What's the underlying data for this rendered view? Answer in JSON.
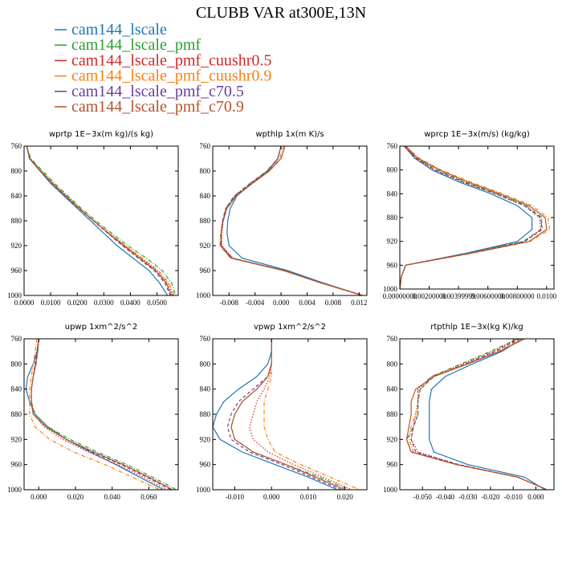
{
  "chart_data": {
    "type": "line",
    "title": "CLUBB VAR at300E,13N",
    "ylim": [
      760,
      1000
    ],
    "series_legend": [
      {
        "name": "cam144_lscale",
        "color": "#1f77b4",
        "dash": "solid"
      },
      {
        "name": "cam144_lscale_pmf",
        "color": "#2ca02c",
        "dash": "dashdot"
      },
      {
        "name": "cam144_lscale_pmf_cuushr0.5",
        "color": "#d62728",
        "dash": "dot"
      },
      {
        "name": "cam144_lscale_pmf_cuushr0.9",
        "color": "#ff7f0e",
        "dash": "dashdot"
      },
      {
        "name": "cam144_lscale_pmf_c70.5",
        "color": "#6a3d9a",
        "dash": "dash"
      },
      {
        "name": "cam144_lscale_pmf_c70.9",
        "color": "#b5532a",
        "dash": "solid"
      }
    ],
    "panels": [
      {
        "title": "wprtp  1E−3x(m kg)/(s kg)",
        "xlim": [
          0,
          0.058
        ],
        "xticks": [
          0,
          0.01,
          0.02,
          0.03,
          0.04,
          0.05
        ],
        "xtick_labels": [
          "0.0000",
          "0.0100",
          "0.0200",
          "0.0300",
          "0.0400",
          "0.0500"
        ],
        "yticks": [
          760,
          800,
          840,
          880,
          920,
          960,
          1000
        ],
        "y": [
          760,
          780,
          800,
          820,
          840,
          860,
          880,
          900,
          920,
          940,
          960,
          980,
          1000
        ],
        "series": [
          {
            "name": "cam144_lscale",
            "values": [
              0.001,
              0.002,
              0.006,
              0.01,
              0.015,
              0.02,
              0.025,
              0.03,
              0.035,
              0.041,
              0.047,
              0.051,
              0.054
            ]
          },
          {
            "name": "cam144_lscale_pmf",
            "values": [
              0.001,
              0.0025,
              0.007,
              0.0115,
              0.0165,
              0.0215,
              0.027,
              0.033,
              0.039,
              0.046,
              0.052,
              0.0555,
              0.057
            ]
          },
          {
            "name": "cam144_lscale_pmf_cuushr0.5",
            "values": [
              0.001,
              0.0023,
              0.0065,
              0.011,
              0.016,
              0.021,
              0.026,
              0.032,
              0.038,
              0.044,
              0.05,
              0.054,
              0.056
            ]
          },
          {
            "name": "cam144_lscale_pmf_cuushr0.9",
            "values": [
              0.001,
              0.0022,
              0.0063,
              0.0108,
              0.0158,
              0.0208,
              0.0262,
              0.032,
              0.038,
              0.0445,
              0.0505,
              0.0545,
              0.0565
            ]
          },
          {
            "name": "cam144_lscale_pmf_c70.5",
            "values": [
              0.001,
              0.0021,
              0.006,
              0.0105,
              0.0155,
              0.0205,
              0.026,
              0.0315,
              0.037,
              0.043,
              0.049,
              0.053,
              0.055
            ]
          },
          {
            "name": "cam144_lscale_pmf_c70.9",
            "values": [
              0.001,
              0.0022,
              0.0062,
              0.0107,
              0.0157,
              0.0207,
              0.0262,
              0.0318,
              0.0375,
              0.0435,
              0.0495,
              0.0535,
              0.0555
            ]
          }
        ]
      },
      {
        "title": "wpthlp  1x(m K)/s",
        "xlim": [
          -0.0105,
          0.0132
        ],
        "xticks": [
          -0.008,
          -0.004,
          0,
          0.004,
          0.008,
          0.012
        ],
        "xtick_labels": [
          "-0.008",
          "-0.004",
          "0.000",
          "0.004",
          "0.008",
          "0.012"
        ],
        "yticks": [
          760,
          800,
          840,
          880,
          920,
          960,
          1000
        ],
        "y": [
          760,
          780,
          800,
          820,
          840,
          860,
          880,
          900,
          920,
          940,
          960,
          980,
          1000
        ],
        "series": [
          {
            "name": "cam144_lscale",
            "values": [
              0.0,
              -0.0005,
              -0.002,
              -0.0045,
              -0.0068,
              -0.0078,
              -0.0082,
              -0.0083,
              -0.008,
              -0.006,
              0.001,
              0.0065,
              0.0125
            ]
          },
          {
            "name": "cam144_lscale_pmf",
            "values": [
              0.0,
              -0.0005,
              -0.0022,
              -0.0048,
              -0.0072,
              -0.0085,
              -0.009,
              -0.0092,
              -0.0092,
              -0.0075,
              0.0005,
              0.0062,
              0.0125
            ]
          },
          {
            "name": "cam144_lscale_pmf_cuushr0.5",
            "values": [
              0.0,
              -0.0005,
              -0.0021,
              -0.0047,
              -0.0071,
              -0.0084,
              -0.0089,
              -0.0091,
              -0.0091,
              -0.0074,
              0.0005,
              0.0062,
              0.0125
            ]
          },
          {
            "name": "cam144_lscale_pmf_cuushr0.9",
            "values": [
              0.0004,
              -0.0002,
              -0.0019,
              -0.0045,
              -0.007,
              -0.0084,
              -0.009,
              -0.0093,
              -0.0094,
              -0.0078,
              0.0003,
              0.0061,
              0.0126
            ]
          },
          {
            "name": "cam144_lscale_pmf_c70.5",
            "values": [
              0.0,
              -0.0005,
              -0.0021,
              -0.0047,
              -0.0071,
              -0.0085,
              -0.009,
              -0.0092,
              -0.0092,
              -0.0075,
              0.0005,
              0.0062,
              0.0125
            ]
          },
          {
            "name": "cam144_lscale_pmf_c70.9",
            "values": [
              0.0006,
              0.0,
              -0.0018,
              -0.0044,
              -0.0069,
              -0.0083,
              -0.0089,
              -0.0092,
              -0.0093,
              -0.0077,
              0.0004,
              0.0062,
              0.0126
            ]
          }
        ]
      },
      {
        "title": "wprcp  1E−3x(m/s) (kg/kg)",
        "xlim": [
          0,
          0.0105
        ],
        "xticks": [
          0,
          0.002,
          0.004,
          0.006,
          0.008,
          0.01
        ],
        "xtick_labels": [
          "0.00000000",
          "0.00200000",
          "0.00399999",
          "0.00600000",
          "0.00800000",
          "0.0100"
        ],
        "yticks": [
          760,
          800,
          840,
          880,
          920,
          960,
          1000
        ],
        "y": [
          760,
          780,
          800,
          820,
          840,
          860,
          880,
          900,
          920,
          940,
          960,
          980,
          1000
        ],
        "series": [
          {
            "name": "cam144_lscale",
            "values": [
              0.0003,
              0.001,
              0.0022,
              0.004,
              0.0062,
              0.008,
              0.009,
              0.009,
              0.008,
              0.0045,
              0.0004,
              0.0001,
              0.0
            ]
          },
          {
            "name": "cam144_lscale_pmf",
            "values": [
              0.0003,
              0.0011,
              0.0025,
              0.0044,
              0.0066,
              0.0086,
              0.0097,
              0.0096,
              0.0084,
              0.0047,
              0.0004,
              0.0001,
              0.0
            ]
          },
          {
            "name": "cam144_lscale_pmf_cuushr0.5",
            "values": [
              0.0003,
              0.001,
              0.0023,
              0.0042,
              0.0065,
              0.0085,
              0.0095,
              0.0096,
              0.0085,
              0.0047,
              0.0004,
              0.0001,
              0.0
            ]
          },
          {
            "name": "cam144_lscale_pmf_cuushr0.9",
            "values": [
              0.0004,
              0.0013,
              0.0028,
              0.0048,
              0.007,
              0.009,
              0.0101,
              0.0102,
              0.0089,
              0.0049,
              0.0004,
              0.0001,
              0.0
            ]
          },
          {
            "name": "cam144_lscale_pmf_c70.5",
            "values": [
              0.0003,
              0.0011,
              0.0024,
              0.0043,
              0.0065,
              0.0085,
              0.0096,
              0.0097,
              0.0085,
              0.0047,
              0.0004,
              0.0001,
              0.0
            ]
          },
          {
            "name": "cam144_lscale_pmf_c70.9",
            "values": [
              0.0004,
              0.0012,
              0.0027,
              0.0046,
              0.0068,
              0.0088,
              0.0099,
              0.01,
              0.0088,
              0.0048,
              0.0004,
              0.0001,
              0.0
            ]
          }
        ]
      },
      {
        "title": "upwp  1xm^2/s^2",
        "xlim": [
          -0.008,
          0.076
        ],
        "xticks": [
          0,
          0.02,
          0.04,
          0.06
        ],
        "xtick_labels": [
          "0.000",
          "0.020",
          "0.040",
          "0.060"
        ],
        "yticks": [
          760,
          800,
          840,
          880,
          920,
          960,
          1000
        ],
        "y": [
          760,
          780,
          800,
          820,
          840,
          860,
          880,
          900,
          920,
          940,
          960,
          980,
          1000
        ],
        "series": [
          {
            "name": "cam144_lscale",
            "values": [
              0.0,
              -0.001,
              -0.003,
              -0.006,
              -0.007,
              -0.005,
              -0.002,
              0.005,
              0.015,
              0.028,
              0.042,
              0.055,
              0.068
            ]
          },
          {
            "name": "cam144_lscale_pmf",
            "values": [
              0.0,
              -0.0005,
              -0.0015,
              -0.003,
              -0.004,
              -0.004,
              -0.002,
              0.005,
              0.017,
              0.032,
              0.048,
              0.062,
              0.075
            ]
          },
          {
            "name": "cam144_lscale_pmf_cuushr0.5",
            "values": [
              0.0,
              -0.0008,
              -0.002,
              -0.003,
              -0.004,
              -0.004,
              -0.003,
              0.003,
              0.013,
              0.027,
              0.043,
              0.057,
              0.07
            ]
          },
          {
            "name": "cam144_lscale_pmf_cuushr0.9",
            "values": [
              -0.001,
              -0.002,
              -0.003,
              -0.004,
              -0.005,
              -0.005,
              -0.005,
              -0.002,
              0.006,
              0.019,
              0.036,
              0.051,
              0.066
            ]
          },
          {
            "name": "cam144_lscale_pmf_c70.5",
            "values": [
              0.0,
              -0.0008,
              -0.002,
              -0.003,
              -0.004,
              -0.004,
              -0.003,
              0.004,
              0.015,
              0.029,
              0.045,
              0.059,
              0.072
            ]
          },
          {
            "name": "cam144_lscale_pmf_c70.9",
            "values": [
              0.0,
              -0.0006,
              -0.0015,
              -0.003,
              -0.004,
              -0.004,
              -0.003,
              0.004,
              0.015,
              0.03,
              0.046,
              0.06,
              0.073
            ]
          }
        ]
      },
      {
        "title": "vpwp  1xm^2/s^2",
        "xlim": [
          -0.016,
          0.026
        ],
        "xticks": [
          -0.01,
          0,
          0.01,
          0.02
        ],
        "xtick_labels": [
          "-0.010",
          "0.000",
          "0.010",
          "0.020"
        ],
        "yticks": [
          760,
          800,
          840,
          880,
          920,
          960,
          1000
        ],
        "y": [
          760,
          780,
          800,
          820,
          840,
          860,
          880,
          900,
          920,
          940,
          960,
          980,
          1000
        ],
        "series": [
          {
            "name": "cam144_lscale",
            "values": [
              0.0,
              0.0,
              -0.001,
              -0.004,
              -0.009,
              -0.013,
              -0.015,
              -0.016,
              -0.014,
              -0.008,
              0.001,
              0.01,
              0.018
            ]
          },
          {
            "name": "cam144_lscale_pmf",
            "values": [
              0.0,
              0.0,
              0.0,
              -0.001,
              -0.004,
              -0.008,
              -0.01,
              -0.011,
              -0.01,
              -0.005,
              0.004,
              0.013,
              0.021
            ]
          },
          {
            "name": "cam144_lscale_pmf_cuushr0.5",
            "values": [
              0.0,
              0.0,
              0.0,
              -0.0005,
              -0.002,
              -0.004,
              -0.005,
              -0.006,
              -0.005,
              -0.001,
              0.006,
              0.014,
              0.022
            ]
          },
          {
            "name": "cam144_lscale_pmf_cuushr0.9",
            "values": [
              0.0,
              0.0,
              0.0,
              0.0,
              -0.001,
              -0.002,
              -0.002,
              -0.002,
              -0.001,
              0.001,
              0.008,
              0.016,
              0.024
            ]
          },
          {
            "name": "cam144_lscale_pmf_c70.5",
            "values": [
              0.0,
              0.0,
              0.0,
              -0.001,
              -0.005,
              -0.009,
              -0.011,
              -0.012,
              -0.011,
              -0.006,
              0.003,
              0.011,
              0.019
            ]
          },
          {
            "name": "cam144_lscale_pmf_c70.9",
            "values": [
              0.0,
              0.0,
              0.0,
              -0.001,
              -0.004,
              -0.008,
              -0.01,
              -0.011,
              -0.01,
              -0.005,
              0.004,
              0.012,
              0.02
            ]
          }
        ]
      },
      {
        "title": "rtpthlp  1E−3x(kg K)/kg",
        "xlim": [
          -0.06,
          0.008
        ],
        "xticks": [
          -0.05,
          -0.04,
          -0.03,
          -0.02,
          -0.01,
          0
        ],
        "xtick_labels": [
          "-0.050",
          "-0.040",
          "-0.030",
          "-0.020",
          "-0.010",
          "0.000"
        ],
        "yticks": [
          760,
          800,
          840,
          880,
          920,
          960,
          1000
        ],
        "y": [
          760,
          780,
          800,
          820,
          840,
          860,
          880,
          900,
          920,
          940,
          960,
          980,
          1000
        ],
        "series": [
          {
            "name": "cam144_lscale",
            "values": [
              -0.006,
              -0.015,
              -0.028,
              -0.04,
              -0.046,
              -0.047,
              -0.047,
              -0.047,
              -0.047,
              -0.045,
              -0.03,
              -0.005,
              0.004
            ]
          },
          {
            "name": "cam144_lscale_pmf",
            "values": [
              -0.008,
              -0.02,
              -0.033,
              -0.046,
              -0.052,
              -0.052,
              -0.052,
              -0.054,
              -0.057,
              -0.055,
              -0.035,
              -0.008,
              0.005
            ]
          },
          {
            "name": "cam144_lscale_pmf_cuushr0.5",
            "values": [
              -0.008,
              -0.019,
              -0.032,
              -0.046,
              -0.052,
              -0.052,
              -0.053,
              -0.054,
              -0.055,
              -0.052,
              -0.034,
              -0.008,
              0.005
            ]
          },
          {
            "name": "cam144_lscale_pmf_cuushr0.9",
            "values": [
              -0.006,
              -0.017,
              -0.031,
              -0.045,
              -0.051,
              -0.052,
              -0.053,
              -0.055,
              -0.056,
              -0.054,
              -0.035,
              -0.008,
              0.005
            ]
          },
          {
            "name": "cam144_lscale_pmf_c70.5",
            "values": [
              -0.007,
              -0.018,
              -0.031,
              -0.045,
              -0.051,
              -0.052,
              -0.052,
              -0.054,
              -0.055,
              -0.053,
              -0.034,
              -0.008,
              0.005
            ]
          },
          {
            "name": "cam144_lscale_pmf_c70.9",
            "values": [
              -0.005,
              -0.016,
              -0.03,
              -0.045,
              -0.053,
              -0.055,
              -0.055,
              -0.056,
              -0.057,
              -0.055,
              -0.035,
              -0.008,
              0.005
            ]
          }
        ]
      }
    ]
  }
}
